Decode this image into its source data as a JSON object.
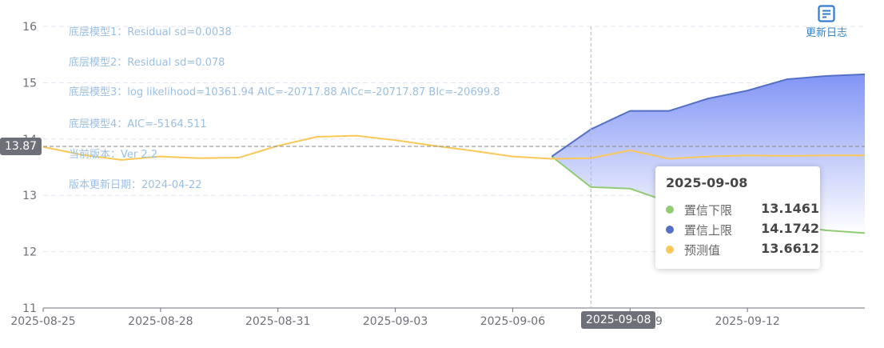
{
  "chart_data": {
    "type": "line",
    "x": [
      "2025-08-25",
      "2025-08-26",
      "2025-08-27",
      "2025-08-28",
      "2025-08-29",
      "2025-08-30",
      "2025-08-31",
      "2025-09-01",
      "2025-09-02",
      "2025-09-03",
      "2025-09-04",
      "2025-09-05",
      "2025-09-06",
      "2025-09-07",
      "2025-09-08",
      "2025-09-09",
      "2025-09-10",
      "2025-09-11",
      "2025-09-12",
      "2025-09-13",
      "2025-09-14",
      "2025-09-15"
    ],
    "x_tick_labels": [
      "2025-08-25",
      "2025-08-28",
      "2025-08-31",
      "2025-09-03",
      "2025-09-06",
      "2025-09-09",
      "2025-09-12"
    ],
    "ylim": [
      11,
      16
    ],
    "y_ticks": [
      11,
      12,
      13,
      14,
      15,
      16
    ],
    "grid": true,
    "series": [
      {
        "name": "置信下限",
        "color": "#91cc75",
        "values": [
          null,
          null,
          null,
          null,
          null,
          null,
          null,
          null,
          null,
          null,
          null,
          null,
          null,
          13.69,
          13.1461,
          13.12,
          12.88,
          12.72,
          12.58,
          12.47,
          12.38,
          12.33
        ]
      },
      {
        "name": "置信上限",
        "color": "#5470c6",
        "values": [
          null,
          null,
          null,
          null,
          null,
          null,
          null,
          null,
          null,
          null,
          null,
          null,
          null,
          13.69,
          14.1742,
          14.5,
          14.5,
          14.72,
          14.86,
          15.06,
          15.12,
          15.15
        ]
      },
      {
        "name": "预测值",
        "color": "#fac858",
        "values": [
          13.86,
          13.72,
          13.63,
          13.69,
          13.66,
          13.67,
          13.88,
          14.04,
          14.06,
          13.98,
          13.88,
          13.79,
          13.69,
          13.65,
          13.6612,
          13.8,
          13.65,
          13.69,
          13.71,
          13.7,
          13.71,
          13.71
        ]
      }
    ],
    "mark_line": {
      "value": 13.87,
      "label": "13.87"
    },
    "axis_pointer": {
      "x_label": "2025-09-08"
    },
    "tooltip": {
      "title": "2025-09-08",
      "rows": [
        {
          "name": "置信下限",
          "value": "13.1461",
          "color": "#91cc75"
        },
        {
          "name": "置信上限",
          "value": "14.1742",
          "color": "#5470c6"
        },
        {
          "name": "预测值",
          "value": "13.6612",
          "color": "#fac858"
        }
      ]
    }
  },
  "info": {
    "lines": [
      "底层模型1：Residual sd=0.0038",
      "底层模型2：Residual sd=0.078",
      "底层模型3：log likelihood=10361.94 AIC=-20717.88 AICc=-20717.87 BIc=-20699.8",
      "底层模型4：AIC=-5164.511",
      "当前版本：Ver 2.2",
      "版本更新日期：2024-04-22"
    ]
  },
  "toolbar": {
    "changelog_label": "更新日志",
    "changelog_icon": "document-icon"
  }
}
